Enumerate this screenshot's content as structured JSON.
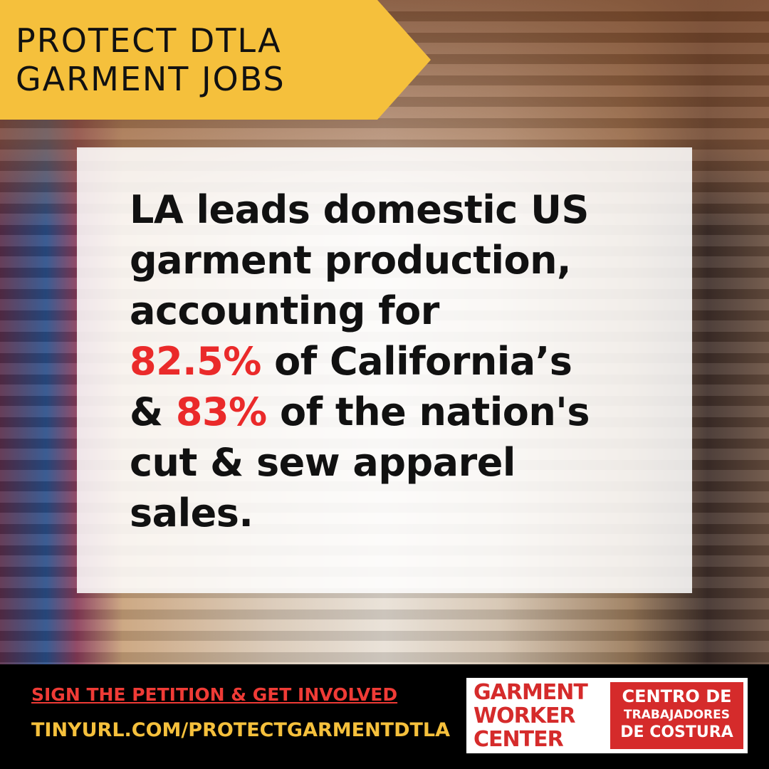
{
  "banner": {
    "lines": [
      "PROTECT DTLA",
      "GARMENT JOBS"
    ]
  },
  "card": {
    "lines": [
      [
        {
          "text": "LA leads domestic US"
        }
      ],
      [
        {
          "text": "garment production,"
        }
      ],
      [
        {
          "text": "accounting for"
        }
      ],
      [
        {
          "text": "82.5%",
          "color": "#ea2a2a"
        },
        {
          "text": " of California’s"
        }
      ],
      [
        {
          "text": "& "
        },
        {
          "text": "83%",
          "color": "#ea2a2a"
        },
        {
          "text": " of the nation's"
        }
      ],
      [
        {
          "text": "cut & sew apparel"
        }
      ],
      [
        {
          "text": "sales."
        }
      ]
    ]
  },
  "footer": {
    "petition": "SIGN THE PETITION & GET INVOLVED",
    "url": "TINYURL.COM/PROTECTGARMENTDTLA",
    "logo": {
      "english": [
        "GARMENT",
        "WORKER",
        "CENTER"
      ],
      "spanish": [
        "CENTRO DE",
        "TRABAJADORES",
        "DE COSTURA"
      ]
    }
  }
}
